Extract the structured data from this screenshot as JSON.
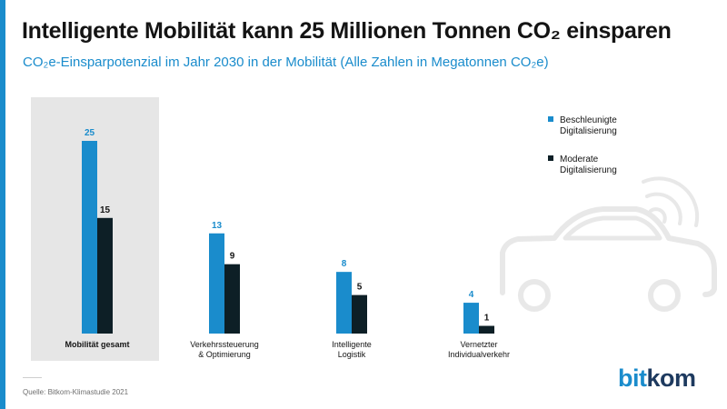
{
  "header": {
    "title": "Intelligente Mobilität kann 25 Millionen Tonnen CO₂ einsparen",
    "subtitle": "CO₂e-Einsparpotenzial im Jahr 2030 in der Mobilität (Alle Zahlen in Megatonnen CO₂e)"
  },
  "footer": {
    "source": "Quelle: Bitkom-Klimastudie 2021",
    "logo_part1": "bit",
    "logo_part2": "kom"
  },
  "colors": {
    "accent_blue": "#1a8ccc",
    "dark": "#0d1f26",
    "highlight_bg": "#e6e6e6",
    "car_outline": "#e8e8e8"
  },
  "icons": [
    "car-icon",
    "connectivity-waves-icon"
  ],
  "chart_data": {
    "type": "bar",
    "title": "",
    "xlabel": "",
    "ylabel": "",
    "ylim": [
      0,
      25
    ],
    "legend_position": "top-right",
    "categories": [
      [
        "Mobilität gesamt"
      ],
      [
        "Verkehrssteuerung",
        "& Optimierung"
      ],
      [
        "Intelligente",
        "Logistik"
      ],
      [
        "Vernetzter",
        "Individualverkehr"
      ]
    ],
    "highlighted_category": 0,
    "series": [
      {
        "name": [
          "Beschleunigte",
          "Digitalisierung"
        ],
        "color": "#1a8ccc",
        "label_color": "#1a8ccc",
        "values": [
          25,
          13,
          8,
          4
        ]
      },
      {
        "name": [
          "Moderate",
          "Digitalisierung"
        ],
        "color": "#0d1f26",
        "label_color": "#141414",
        "values": [
          15,
          9,
          5,
          1
        ]
      }
    ]
  }
}
